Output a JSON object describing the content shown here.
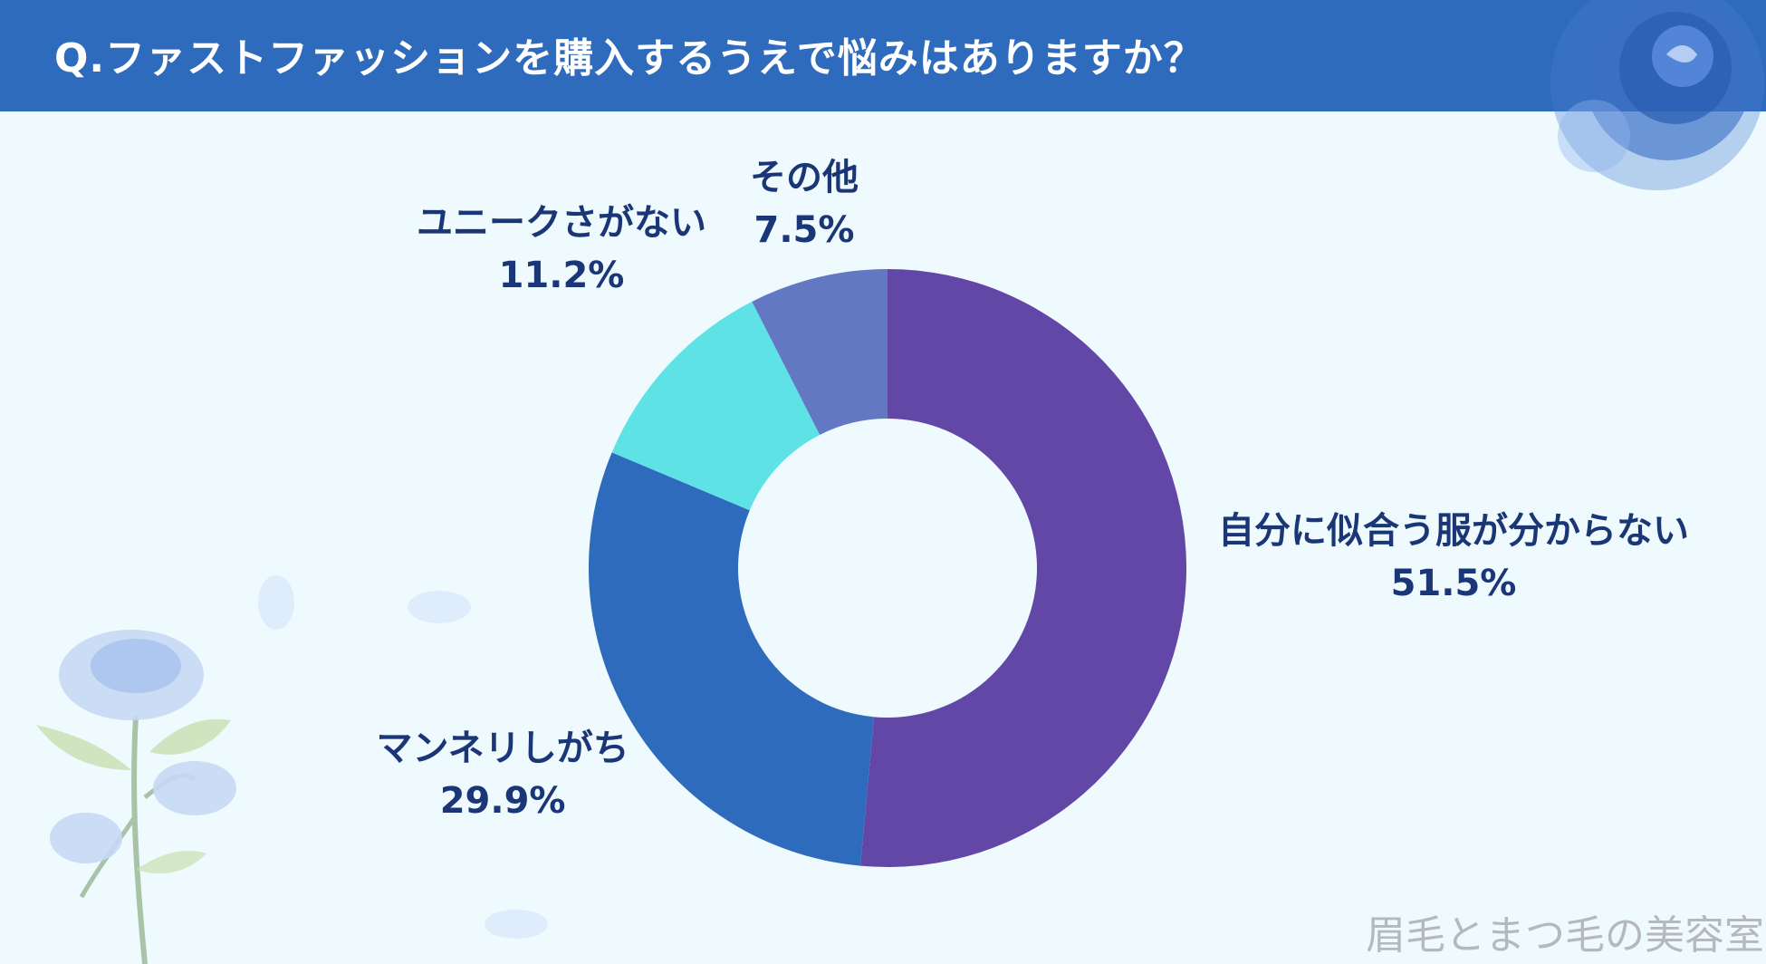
{
  "title": "Q.ファストファッションを購入するうえで悩みはありますか？",
  "watermark": "眉毛とまつ毛の美容室",
  "chart_data": {
    "type": "pie",
    "donut": true,
    "start": "top, clockwise",
    "slices": [
      {
        "label": "自分に似合う服が分からない",
        "value": 51.5,
        "value_label": "51.5%",
        "color": "#6247a7"
      },
      {
        "label": "マンネリしがち",
        "value": 29.9,
        "value_label": "29.9%",
        "color": "#2f6bbd"
      },
      {
        "label": "ユニークさがない",
        "value": 11.2,
        "value_label": "11.2%",
        "color": "#5fe2e6"
      },
      {
        "label": "その他",
        "value": 7.5,
        "value_label": "7.5%",
        "color": "#6378c2"
      }
    ]
  },
  "decor": {
    "rose_icon": "blue-rose-icon",
    "flower_icon": "blue-flower-branch-icon"
  }
}
